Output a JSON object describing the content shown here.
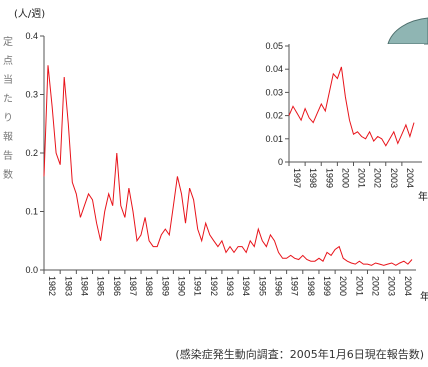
{
  "chart_data": [
    {
      "type": "line",
      "ylabel": "(人/週)",
      "ylim": [
        0,
        0.4
      ],
      "yticks": [
        "0.0",
        "0.1",
        "0.2",
        "0.3",
        "0.4"
      ],
      "x_tick_labels": [
        "1982",
        "1983",
        "1984",
        "1985",
        "1986",
        "1987",
        "1988",
        "1989",
        "1990",
        "1991",
        "1992",
        "1993",
        "1994",
        "1995",
        "1996",
        "1997",
        "1998",
        "1999",
        "2000",
        "2001",
        "2002",
        "2003",
        "2004"
      ],
      "x_suffix": "年",
      "y_axis_vertical_text": "定点当たり報告数",
      "series": [
        {
          "color": "#e8141b",
          "x": [
            1982.0,
            1982.25,
            1982.5,
            1982.75,
            1983.0,
            1983.25,
            1983.5,
            1983.75,
            1984.0,
            1984.25,
            1984.5,
            1984.75,
            1985.0,
            1985.25,
            1985.5,
            1985.75,
            1986.0,
            1986.25,
            1986.5,
            1986.75,
            1987.0,
            1987.25,
            1987.5,
            1987.75,
            1988.0,
            1988.25,
            1988.5,
            1988.75,
            1989.0,
            1989.25,
            1989.5,
            1989.75,
            1990.0,
            1990.25,
            1990.5,
            1990.75,
            1991.0,
            1991.25,
            1991.5,
            1991.75,
            1992.0,
            1992.25,
            1992.5,
            1992.75,
            1993.0,
            1993.25,
            1993.5,
            1993.75,
            1994.0,
            1994.25,
            1994.5,
            1994.75,
            1995.0,
            1995.25,
            1995.5,
            1995.75,
            1996.0,
            1996.25,
            1996.5,
            1996.75,
            1997.0,
            1997.25,
            1997.5,
            1997.75,
            1998.0,
            1998.25,
            1998.5,
            1998.75,
            1999.0,
            1999.25,
            1999.5,
            1999.75,
            2000.0,
            2000.25,
            2000.5,
            2000.75,
            2001.0,
            2001.25,
            2001.5,
            2001.75,
            2002.0,
            2002.25,
            2002.5,
            2002.75,
            2003.0,
            2003.25,
            2003.5,
            2003.75,
            2004.0,
            2004.25,
            2004.5,
            2004.75
          ],
          "values": [
            0.16,
            0.35,
            0.28,
            0.2,
            0.18,
            0.33,
            0.25,
            0.15,
            0.13,
            0.09,
            0.11,
            0.13,
            0.12,
            0.08,
            0.05,
            0.1,
            0.13,
            0.11,
            0.2,
            0.11,
            0.09,
            0.14,
            0.1,
            0.05,
            0.06,
            0.09,
            0.05,
            0.04,
            0.04,
            0.06,
            0.07,
            0.06,
            0.11,
            0.16,
            0.13,
            0.08,
            0.14,
            0.12,
            0.07,
            0.05,
            0.08,
            0.06,
            0.05,
            0.04,
            0.05,
            0.03,
            0.04,
            0.03,
            0.04,
            0.04,
            0.03,
            0.05,
            0.04,
            0.07,
            0.05,
            0.04,
            0.06,
            0.05,
            0.03,
            0.02,
            0.02,
            0.025,
            0.02,
            0.018,
            0.025,
            0.018,
            0.015,
            0.015,
            0.02,
            0.015,
            0.03,
            0.025,
            0.035,
            0.04,
            0.02,
            0.015,
            0.012,
            0.01,
            0.015,
            0.01,
            0.01,
            0.008,
            0.012,
            0.01,
            0.008,
            0.01,
            0.012,
            0.008,
            0.012,
            0.015,
            0.01,
            0.018
          ]
        }
      ]
    },
    {
      "type": "line",
      "title": "",
      "ylim": [
        0,
        0.05
      ],
      "yticks": [
        "0",
        "0.01",
        "0.02",
        "0.03",
        "0.04",
        "0.05"
      ],
      "x_tick_labels": [
        "1997",
        "1998",
        "1999",
        "2000",
        "2001",
        "2002",
        "2003",
        "2004"
      ],
      "x_suffix": "年",
      "series": [
        {
          "color": "#e8141b",
          "x": [
            1997.0,
            1997.25,
            1997.5,
            1997.75,
            1998.0,
            1998.25,
            1998.5,
            1998.75,
            1999.0,
            1999.25,
            1999.5,
            1999.75,
            2000.0,
            2000.25,
            2000.5,
            2000.75,
            2001.0,
            2001.25,
            2001.5,
            2001.75,
            2002.0,
            2002.25,
            2002.5,
            2002.75,
            2003.0,
            2003.25,
            2003.5,
            2003.75,
            2004.0,
            2004.25,
            2004.5,
            2004.75
          ],
          "values": [
            0.02,
            0.024,
            0.021,
            0.018,
            0.023,
            0.019,
            0.017,
            0.021,
            0.025,
            0.022,
            0.03,
            0.038,
            0.036,
            0.041,
            0.028,
            0.018,
            0.012,
            0.013,
            0.011,
            0.01,
            0.013,
            0.009,
            0.011,
            0.01,
            0.007,
            0.01,
            0.013,
            0.008,
            0.012,
            0.016,
            0.011,
            0.017
          ]
        }
      ]
    }
  ],
  "source_note": "(感染症発生動向調査：2005年1月6日現在報告数)"
}
